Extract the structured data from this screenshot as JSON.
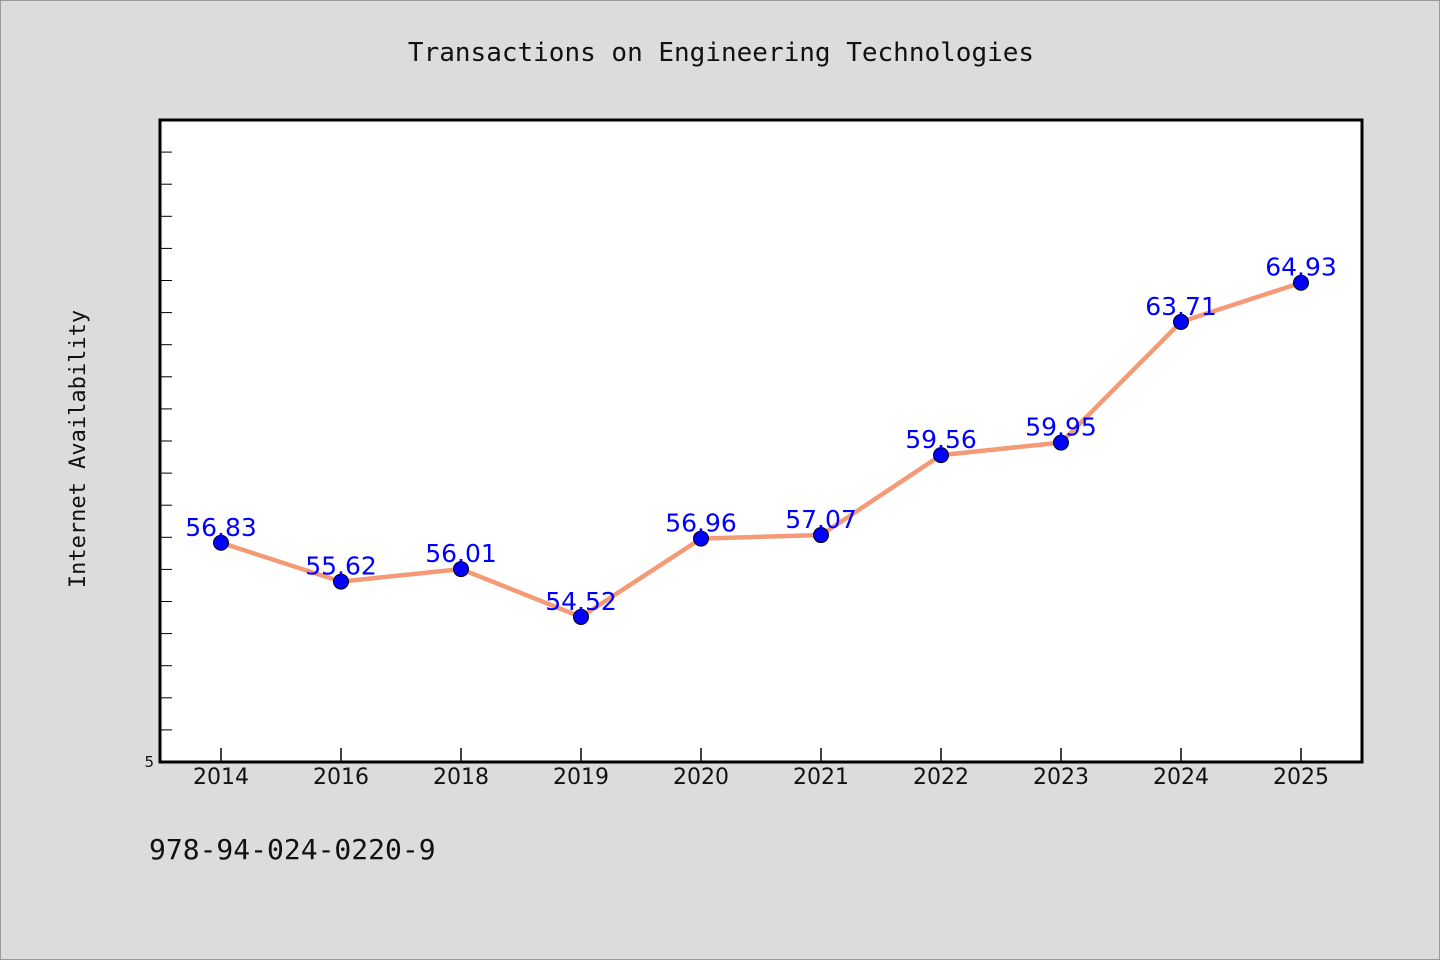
{
  "chart_data": {
    "type": "line",
    "title": "Transactions on Engineering Technologies",
    "xlabel": "",
    "ylabel": "Internet Availability",
    "categories": [
      "2014",
      "2016",
      "2018",
      "2019",
      "2020",
      "2021",
      "2022",
      "2023",
      "2024",
      "2025"
    ],
    "series": [
      {
        "values": [
          56.83,
          55.62,
          56.01,
          54.52,
          56.96,
          57.07,
          59.56,
          59.95,
          63.71,
          64.93
        ]
      }
    ],
    "data_labels": [
      "56.83",
      "55.62",
      "56.01",
      "54.52",
      "56.96",
      "57.07",
      "59.56",
      "59.95",
      "63.71",
      "64.93"
    ],
    "y_tick_labels": [
      "5"
    ],
    "ylim": [
      50,
      70
    ],
    "grid": false,
    "colors": {
      "line": "#f59a77",
      "marker": "#0000ff",
      "data_label": "#0000ff",
      "plot_background": "#ffffff",
      "figure_background": "#dcdcdc"
    }
  },
  "footer": {
    "isbn": "978-94-024-0220-9"
  }
}
